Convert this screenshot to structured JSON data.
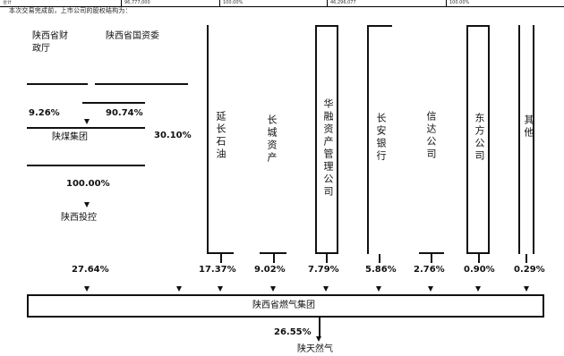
{
  "table_row": {
    "cells": [
      "合计",
      "96,777,000",
      "100.00%",
      "46,296,077",
      "100.00%"
    ]
  },
  "intro": "本次交易完成前，上市公司的股权结构为：",
  "holders": {
    "shaanxi_finance": "陕西省财政厅",
    "sasac": "陕西省国资委",
    "group": "陕煤集团",
    "investment": "陕西投控"
  },
  "pct_top": {
    "finance": "9.26%",
    "sasac": "90.74%",
    "group_direct": "30.10%",
    "group_to_invest": "100.00%",
    "invest": "27.64%"
  },
  "vertical_boxes": [
    {
      "label": "延长石油",
      "pct": "17.37%"
    },
    {
      "label": "长城资产",
      "pct": "9.02%"
    },
    {
      "label": "华融资产管理公司",
      "pct": "7.79%"
    },
    {
      "label": "长安银行",
      "pct": "5.86%"
    },
    {
      "label": "信达公司",
      "pct": "2.76%"
    },
    {
      "label": "东方公司",
      "pct": "0.90%"
    },
    {
      "label": "其他",
      "pct": "0.29%"
    }
  ],
  "company": "陕西省燃气集团",
  "listed_pct": "26.55%",
  "listed": "陕天然气"
}
